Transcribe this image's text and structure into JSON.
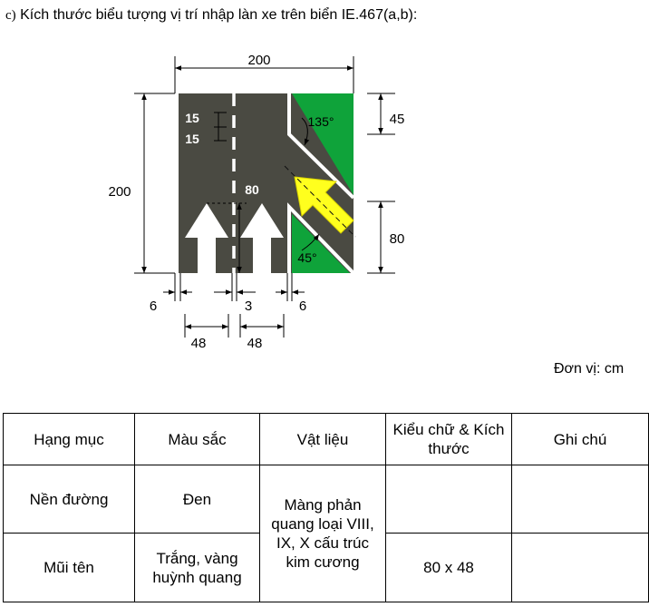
{
  "heading": {
    "prefix": "c)",
    "title": "Kích thước biểu tượng vị trí nhập làn xe trên biển IE.467(a,b):"
  },
  "diagram": {
    "dim_width": "200",
    "dim_height": "200",
    "dim_top_right": "45",
    "dim_bottom_right": "80",
    "dash_length": "15",
    "dash_gap": "15",
    "arrow_length": "80",
    "angle_top": "135°",
    "angle_bottom": "45°",
    "bottom_left_margin": "6",
    "bottom_gap": "3",
    "bottom_right_margin": "6",
    "arrow_width_left": "48",
    "arrow_width_right": "48",
    "colors": {
      "road": "#4a4a42",
      "green": "#0fa33a",
      "marking": "#ffffff",
      "arrow": "#ffff1e"
    }
  },
  "unit_label": "Đơn vị: cm",
  "table": {
    "headers": [
      "Hạng mục",
      "Màu sắc",
      "Vật liệu",
      "Kiểu chữ & Kích thước",
      "Ghi chú"
    ],
    "rows": [
      {
        "item": "Nền đường",
        "color": "Đen",
        "size": "",
        "note": ""
      },
      {
        "item": "Mũi tên",
        "color": "Trắng, vàng huỳnh quang",
        "size": "80 x 48",
        "note": ""
      }
    ],
    "material": "Màng phản quang loại VIII, IX, X cấu trúc kim cương"
  }
}
